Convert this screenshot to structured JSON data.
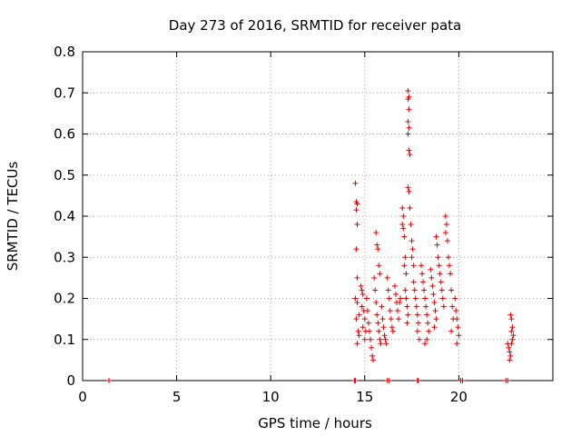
{
  "chart_data": {
    "type": "scatter",
    "title": "Day 273 of 2016, SRMTID for receiver pata",
    "xlabel": "GPS time / hours",
    "ylabel": "SRMTID / TECUs",
    "xlim": [
      0,
      25
    ],
    "ylim": [
      0,
      0.8
    ],
    "xticks": [
      0,
      5,
      10,
      15,
      20
    ],
    "yticks": [
      0,
      0.1,
      0.2,
      0.3,
      0.4,
      0.5,
      0.6,
      0.7,
      0.8
    ],
    "xtick_labels": [
      "0",
      "5",
      "10",
      "15",
      "20"
    ],
    "ytick_labels": [
      "0",
      "0.1",
      "0.2",
      "0.3",
      "0.4",
      "0.5",
      "0.6",
      "0.7",
      "0.8"
    ],
    "grid": true,
    "marker": "+",
    "series": [
      {
        "name": "SRMTID",
        "color": "#e00000",
        "points": [
          [
            1.4,
            0.0
          ],
          [
            14.45,
            0.0
          ],
          [
            14.5,
            0.0
          ],
          [
            16.2,
            0.0
          ],
          [
            16.3,
            0.0
          ],
          [
            17.8,
            0.0
          ],
          [
            17.85,
            0.0
          ],
          [
            20.1,
            0.0
          ],
          [
            20.2,
            0.0
          ],
          [
            22.5,
            0.0
          ],
          [
            22.6,
            0.0
          ],
          [
            14.5,
            0.48
          ],
          [
            14.55,
            0.435
          ],
          [
            14.6,
            0.43
          ],
          [
            14.55,
            0.415
          ],
          [
            14.6,
            0.38
          ],
          [
            14.55,
            0.32
          ],
          [
            14.6,
            0.25
          ],
          [
            14.5,
            0.2
          ],
          [
            14.6,
            0.19
          ],
          [
            14.7,
            0.16
          ],
          [
            14.55,
            0.15
          ],
          [
            14.65,
            0.12
          ],
          [
            14.7,
            0.11
          ],
          [
            14.6,
            0.09
          ],
          [
            14.8,
            0.23
          ],
          [
            14.85,
            0.22
          ],
          [
            14.9,
            0.21
          ],
          [
            14.85,
            0.18
          ],
          [
            14.95,
            0.17
          ],
          [
            15.0,
            0.15
          ],
          [
            14.9,
            0.13
          ],
          [
            15.05,
            0.12
          ],
          [
            15.0,
            0.1
          ],
          [
            15.1,
            0.2
          ],
          [
            15.15,
            0.17
          ],
          [
            15.2,
            0.14
          ],
          [
            15.25,
            0.12
          ],
          [
            15.3,
            0.1
          ],
          [
            15.35,
            0.08
          ],
          [
            15.4,
            0.06
          ],
          [
            15.45,
            0.05
          ],
          [
            15.5,
            0.25
          ],
          [
            15.55,
            0.22
          ],
          [
            15.6,
            0.19
          ],
          [
            15.65,
            0.16
          ],
          [
            15.7,
            0.14
          ],
          [
            15.75,
            0.12
          ],
          [
            15.8,
            0.1
          ],
          [
            15.85,
            0.09
          ],
          [
            15.6,
            0.36
          ],
          [
            15.65,
            0.33
          ],
          [
            15.7,
            0.32
          ],
          [
            15.75,
            0.28
          ],
          [
            15.8,
            0.26
          ],
          [
            15.9,
            0.18
          ],
          [
            15.95,
            0.15
          ],
          [
            16.0,
            0.13
          ],
          [
            16.05,
            0.11
          ],
          [
            16.1,
            0.1
          ],
          [
            16.15,
            0.09
          ],
          [
            16.2,
            0.25
          ],
          [
            16.25,
            0.22
          ],
          [
            16.3,
            0.2
          ],
          [
            16.35,
            0.17
          ],
          [
            16.4,
            0.15
          ],
          [
            16.45,
            0.13
          ],
          [
            16.5,
            0.12
          ],
          [
            16.6,
            0.23
          ],
          [
            16.65,
            0.21
          ],
          [
            16.7,
            0.19
          ],
          [
            16.75,
            0.17
          ],
          [
            16.8,
            0.15
          ],
          [
            16.85,
            0.19
          ],
          [
            16.9,
            0.2
          ],
          [
            17.0,
            0.42
          ],
          [
            17.05,
            0.4
          ],
          [
            17.0,
            0.38
          ],
          [
            17.05,
            0.37
          ],
          [
            17.1,
            0.35
          ],
          [
            17.15,
            0.3
          ],
          [
            17.1,
            0.28
          ],
          [
            17.2,
            0.26
          ],
          [
            17.15,
            0.22
          ],
          [
            17.2,
            0.2
          ],
          [
            17.25,
            0.18
          ],
          [
            17.3,
            0.16
          ],
          [
            17.25,
            0.14
          ],
          [
            17.3,
            0.705
          ],
          [
            17.35,
            0.69
          ],
          [
            17.3,
            0.685
          ],
          [
            17.35,
            0.66
          ],
          [
            17.3,
            0.63
          ],
          [
            17.35,
            0.615
          ],
          [
            17.3,
            0.6
          ],
          [
            17.35,
            0.56
          ],
          [
            17.4,
            0.55
          ],
          [
            17.3,
            0.47
          ],
          [
            17.35,
            0.46
          ],
          [
            17.4,
            0.42
          ],
          [
            17.45,
            0.38
          ],
          [
            17.5,
            0.34
          ],
          [
            17.55,
            0.32
          ],
          [
            17.5,
            0.3
          ],
          [
            17.6,
            0.28
          ],
          [
            17.6,
            0.24
          ],
          [
            17.65,
            0.22
          ],
          [
            17.7,
            0.2
          ],
          [
            17.75,
            0.18
          ],
          [
            17.8,
            0.16
          ],
          [
            17.85,
            0.14
          ],
          [
            17.8,
            0.12
          ],
          [
            17.9,
            0.1
          ],
          [
            18.0,
            0.28
          ],
          [
            18.05,
            0.26
          ],
          [
            18.1,
            0.24
          ],
          [
            18.15,
            0.22
          ],
          [
            18.2,
            0.2
          ],
          [
            18.25,
            0.18
          ],
          [
            18.3,
            0.16
          ],
          [
            18.35,
            0.14
          ],
          [
            18.4,
            0.12
          ],
          [
            18.3,
            0.1
          ],
          [
            18.2,
            0.09
          ],
          [
            18.5,
            0.27
          ],
          [
            18.55,
            0.25
          ],
          [
            18.6,
            0.23
          ],
          [
            18.65,
            0.21
          ],
          [
            18.7,
            0.19
          ],
          [
            18.75,
            0.17
          ],
          [
            18.8,
            0.15
          ],
          [
            18.7,
            0.13
          ],
          [
            18.8,
            0.35
          ],
          [
            18.85,
            0.33
          ],
          [
            18.9,
            0.3
          ],
          [
            18.95,
            0.28
          ],
          [
            19.0,
            0.26
          ],
          [
            19.05,
            0.24
          ],
          [
            19.1,
            0.22
          ],
          [
            19.15,
            0.2
          ],
          [
            19.2,
            0.18
          ],
          [
            19.3,
            0.4
          ],
          [
            19.35,
            0.38
          ],
          [
            19.3,
            0.36
          ],
          [
            19.4,
            0.34
          ],
          [
            19.45,
            0.3
          ],
          [
            19.5,
            0.28
          ],
          [
            19.55,
            0.26
          ],
          [
            19.6,
            0.22
          ],
          [
            19.65,
            0.18
          ],
          [
            19.7,
            0.15
          ],
          [
            19.6,
            0.12
          ],
          [
            19.8,
            0.2
          ],
          [
            19.85,
            0.17
          ],
          [
            19.9,
            0.15
          ],
          [
            19.95,
            0.13
          ],
          [
            20.0,
            0.11
          ],
          [
            19.9,
            0.09
          ],
          [
            22.6,
            0.09
          ],
          [
            22.65,
            0.08
          ],
          [
            22.7,
            0.07
          ],
          [
            22.75,
            0.06
          ],
          [
            22.7,
            0.05
          ],
          [
            22.75,
            0.16
          ],
          [
            22.8,
            0.15
          ],
          [
            22.85,
            0.13
          ],
          [
            22.8,
            0.12
          ],
          [
            22.9,
            0.11
          ],
          [
            22.85,
            0.1
          ],
          [
            22.8,
            0.09
          ]
        ]
      }
    ]
  }
}
